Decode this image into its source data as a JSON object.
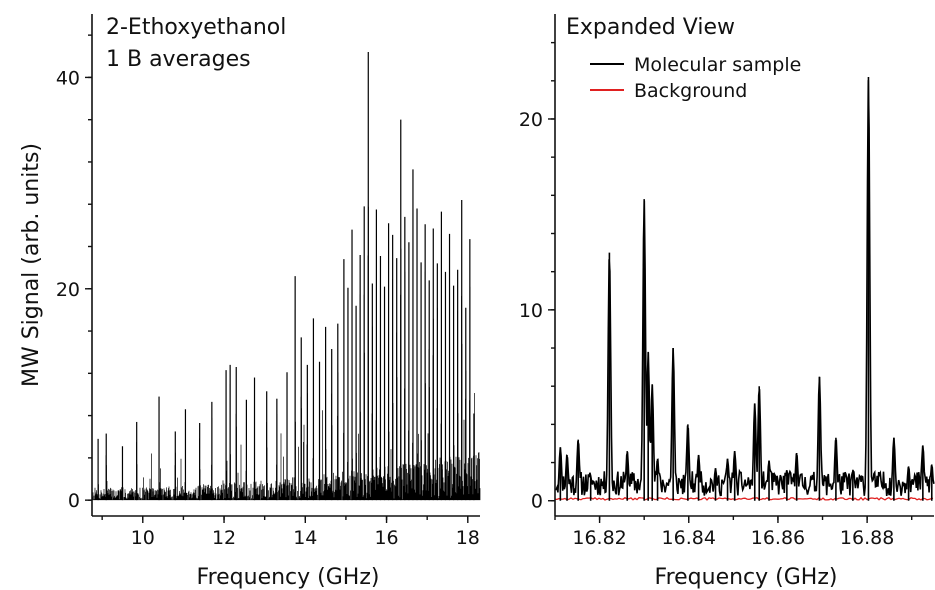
{
  "chart_data": [
    {
      "panel": "left",
      "type": "line",
      "annotations": [
        "2-Ethoxyethanol",
        "1 B averages"
      ],
      "xlabel": "Frequency (GHz)",
      "ylabel": "MW Signal (arb. units)",
      "xlim": [
        8.75,
        18.3
      ],
      "ylim": [
        -1.5,
        46
      ],
      "xticks": [
        10,
        12,
        14,
        16,
        18
      ],
      "xtick_labels": [
        "10",
        "12",
        "14",
        "16",
        "18"
      ],
      "yticks": [
        0,
        20,
        40
      ],
      "ytick_labels": [
        "0",
        "20",
        "40"
      ],
      "series": [
        {
          "color": "#000000",
          "peaks": [
            [
              8.9,
              5.8
            ],
            [
              9.1,
              6.3
            ],
            [
              9.5,
              5.1
            ],
            [
              9.85,
              7.4
            ],
            [
              10.4,
              9.8
            ],
            [
              10.8,
              6.5
            ],
            [
              11.05,
              8.6
            ],
            [
              11.4,
              7.3
            ],
            [
              11.7,
              9.3
            ],
            [
              12.05,
              12.3
            ],
            [
              12.15,
              12.8
            ],
            [
              12.3,
              12.6
            ],
            [
              12.55,
              9.5
            ],
            [
              12.75,
              11.6
            ],
            [
              13.05,
              10.3
            ],
            [
              13.3,
              9.6
            ],
            [
              13.55,
              12.1
            ],
            [
              13.75,
              21.2
            ],
            [
              13.9,
              15.4
            ],
            [
              14.05,
              12.8
            ],
            [
              14.2,
              17.2
            ],
            [
              14.35,
              13.1
            ],
            [
              14.5,
              16.4
            ],
            [
              14.65,
              14.3
            ],
            [
              14.8,
              16.7
            ],
            [
              14.95,
              22.8
            ],
            [
              15.05,
              20.1
            ],
            [
              15.15,
              25.6
            ],
            [
              15.25,
              18.4
            ],
            [
              15.35,
              23.2
            ],
            [
              15.45,
              27.8
            ],
            [
              15.55,
              42.4
            ],
            [
              15.65,
              20.5
            ],
            [
              15.75,
              27.5
            ],
            [
              15.85,
              23.1
            ],
            [
              15.95,
              20.2
            ],
            [
              16.05,
              26.2
            ],
            [
              16.15,
              25.1
            ],
            [
              16.25,
              22.9
            ],
            [
              16.35,
              36.0
            ],
            [
              16.45,
              26.8
            ],
            [
              16.55,
              24.4
            ],
            [
              16.65,
              31.3
            ],
            [
              16.75,
              27.6
            ],
            [
              16.85,
              22.5
            ],
            [
              16.95,
              26.1
            ],
            [
              17.05,
              20.8
            ],
            [
              17.15,
              25.7
            ],
            [
              17.25,
              22.4
            ],
            [
              17.35,
              27.3
            ],
            [
              17.45,
              21.6
            ],
            [
              17.55,
              25.2
            ],
            [
              17.65,
              20.3
            ],
            [
              17.75,
              21.8
            ],
            [
              17.85,
              28.4
            ],
            [
              17.95,
              18.2
            ],
            [
              18.05,
              24.7
            ],
            [
              18.15,
              8.2
            ]
          ]
        }
      ]
    },
    {
      "panel": "right",
      "type": "line",
      "title": "Expanded View",
      "xlabel": "Frequency (GHz)",
      "ylabel": "",
      "xlim": [
        16.81,
        16.895
      ],
      "ylim": [
        -0.8,
        25.5
      ],
      "xticks": [
        16.82,
        16.84,
        16.86,
        16.88
      ],
      "xtick_labels": [
        "16.82",
        "16.84",
        "16.86",
        "16.88"
      ],
      "yticks": [
        0,
        10,
        20
      ],
      "ytick_labels": [
        "0",
        "10",
        "20"
      ],
      "legend_position": "top-left",
      "series": [
        {
          "name": "Molecular sample",
          "color": "#000000",
          "peaks": [
            [
              16.8112,
              2.8
            ],
            [
              16.8127,
              2.4
            ],
            [
              16.8152,
              3.2
            ],
            [
              16.818,
              1.3
            ],
            [
              16.8222,
              13.0
            ],
            [
              16.8262,
              2.6
            ],
            [
              16.83,
              15.8
            ],
            [
              16.8309,
              7.8
            ],
            [
              16.8318,
              6.1
            ],
            [
              16.833,
              2.2
            ],
            [
              16.8365,
              8.0
            ],
            [
              16.8398,
              4.0
            ],
            [
              16.8422,
              2.4
            ],
            [
              16.846,
              1.7
            ],
            [
              16.8487,
              2.2
            ],
            [
              16.8503,
              2.6
            ],
            [
              16.8548,
              5.1
            ],
            [
              16.8558,
              6.0
            ],
            [
              16.858,
              2.1
            ],
            [
              16.862,
              1.6
            ],
            [
              16.8642,
              2.5
            ],
            [
              16.8693,
              6.5
            ],
            [
              16.873,
              3.3
            ],
            [
              16.8768,
              1.6
            ],
            [
              16.8803,
              22.2
            ],
            [
              16.886,
              3.3
            ],
            [
              16.8893,
              1.8
            ],
            [
              16.8925,
              2.9
            ],
            [
              16.8945,
              1.9
            ]
          ]
        },
        {
          "name": "Background",
          "color": "#e02020",
          "level": 0.1
        }
      ]
    }
  ]
}
